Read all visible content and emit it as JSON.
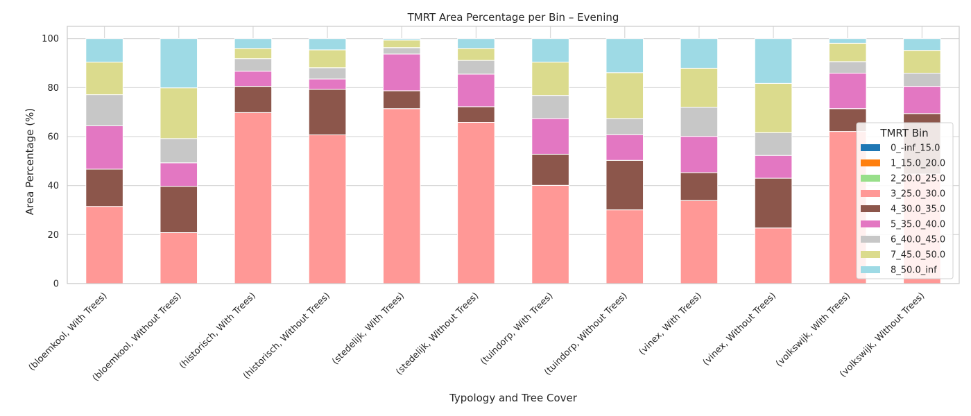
{
  "chart_data": {
    "type": "bar",
    "stacked": true,
    "title": "TMRT Area Percentage per Bin – Evening",
    "xlabel": "Typology and Tree Cover",
    "ylabel": "Area Percentage (%)",
    "ylim": [
      0,
      105
    ],
    "yticks": [
      0,
      20,
      40,
      60,
      80,
      100
    ],
    "grid": true,
    "legend_title": "TMRT Bin",
    "legend_position": "right",
    "categories": [
      "(bloemkool, With Trees)",
      "(bloemkool, Without Trees)",
      "(historisch, With Trees)",
      "(historisch, Without Trees)",
      "(stedelijk, With Trees)",
      "(stedelijk, Without Trees)",
      "(tuindorp, With Trees)",
      "(tuindorp, Without Trees)",
      "(vinex, With Trees)",
      "(vinex, Without Trees)",
      "(volkswijk, With Trees)",
      "(volkswijk, Without Trees)"
    ],
    "series": [
      {
        "name": "0_-inf_15.0",
        "color": "#1f77b4",
        "values": [
          0,
          0,
          0,
          0,
          0,
          0,
          0,
          0,
          0,
          0,
          0,
          0
        ]
      },
      {
        "name": "1_15.0_20.0",
        "color": "#ff7f0e",
        "values": [
          0,
          0,
          0,
          0,
          0,
          0,
          0,
          0,
          0,
          0,
          0,
          0
        ]
      },
      {
        "name": "2_20.0_25.0",
        "color": "#98df8a",
        "values": [
          0,
          0,
          0,
          0,
          0,
          0,
          0,
          0,
          0,
          0,
          0,
          0
        ]
      },
      {
        "name": "3_25.0_30.0",
        "color": "#ff9896",
        "values": [
          31.5,
          20.8,
          69.8,
          60.7,
          71.4,
          65.8,
          40.1,
          30.1,
          33.9,
          22.7,
          62.1,
          44.7
        ]
      },
      {
        "name": "4_30.0_35.0",
        "color": "#8c564b",
        "values": [
          15.2,
          18.9,
          10.7,
          18.6,
          7.3,
          6.4,
          12.7,
          20.2,
          11.4,
          20.3,
          9.3,
          24.7
        ]
      },
      {
        "name": "5_35.0_40.0",
        "color": "#e377c2",
        "values": [
          17.7,
          9.6,
          6.2,
          4.2,
          15.0,
          13.3,
          14.6,
          10.5,
          14.8,
          9.3,
          14.5,
          11.1
        ]
      },
      {
        "name": "6_40.0_45.0",
        "color": "#c7c7c7",
        "values": [
          12.7,
          9.9,
          5.1,
          4.6,
          2.6,
          5.6,
          9.4,
          6.6,
          11.9,
          9.3,
          4.7,
          5.4
        ]
      },
      {
        "name": "7_45.0_50.0",
        "color": "#dbdb8d",
        "values": [
          13.3,
          20.7,
          4.2,
          7.3,
          3.1,
          4.9,
          13.6,
          18.7,
          15.9,
          20.1,
          7.5,
          9.3
        ]
      },
      {
        "name": "8_50.0_inf",
        "color": "#9edae5",
        "values": [
          9.6,
          20.1,
          4.0,
          4.6,
          0.6,
          4.0,
          9.6,
          13.9,
          12.1,
          18.3,
          1.9,
          4.8
        ]
      }
    ]
  }
}
